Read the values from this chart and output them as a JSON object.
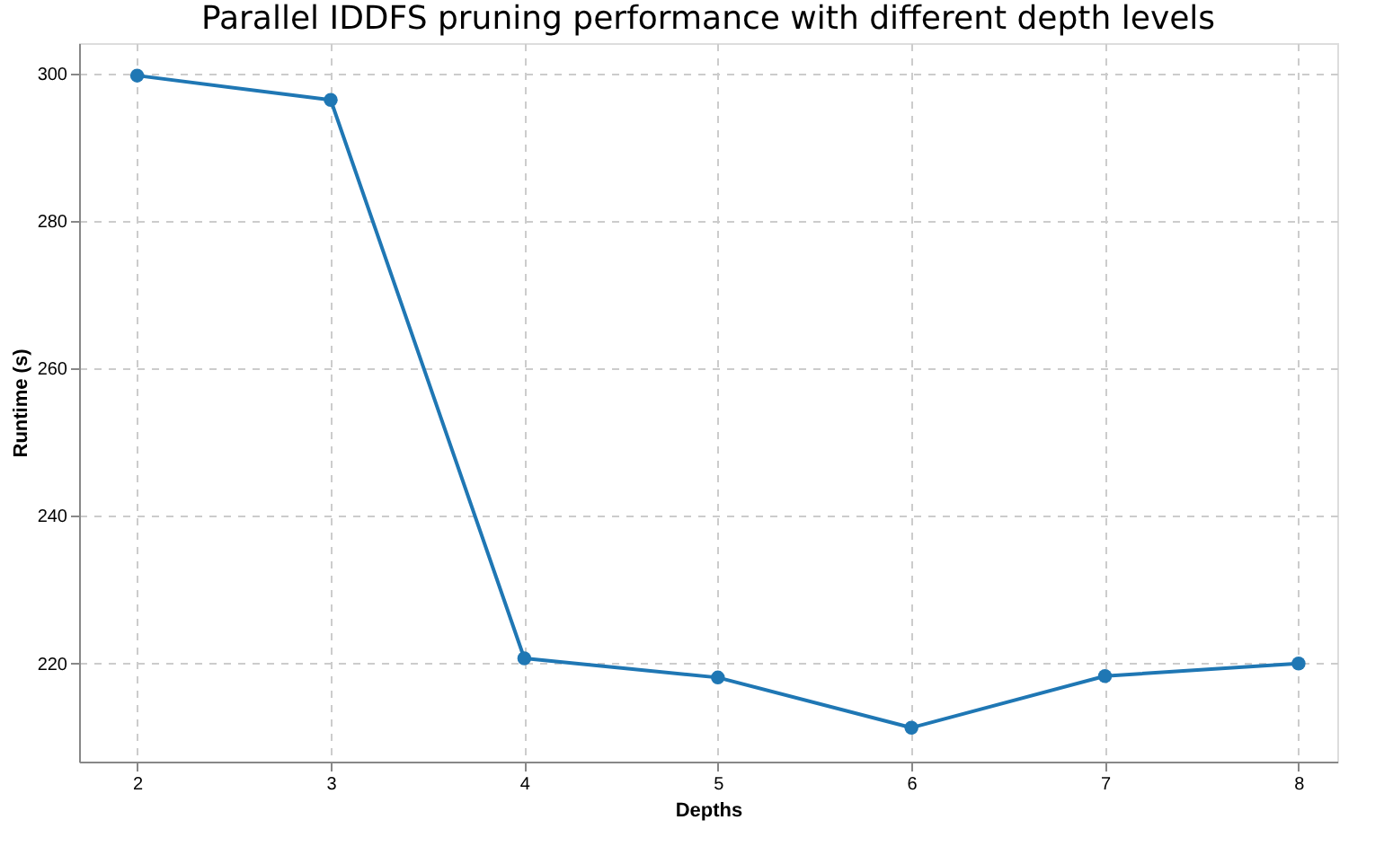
{
  "chart_data": {
    "type": "line",
    "title": "Parallel IDDFS pruning performance with different depth levels",
    "xlabel": "Depths",
    "ylabel": "Runtime (s)",
    "x": [
      2,
      3,
      4,
      5,
      6,
      7,
      8
    ],
    "series": [
      {
        "color": "#1f77b4",
        "values": [
          299.7,
          296.4,
          220.7,
          218.1,
          211.3,
          218.3,
          220.0
        ]
      }
    ],
    "xlim": [
      1.7,
      8.2
    ],
    "xticks": [
      2,
      3,
      4,
      5,
      6,
      7,
      8
    ],
    "ylim": [
      206.7,
      304.1
    ],
    "yticks": [
      220,
      240,
      260,
      280,
      300
    ],
    "grid": true,
    "marker": "circle",
    "line_style": "solid"
  }
}
